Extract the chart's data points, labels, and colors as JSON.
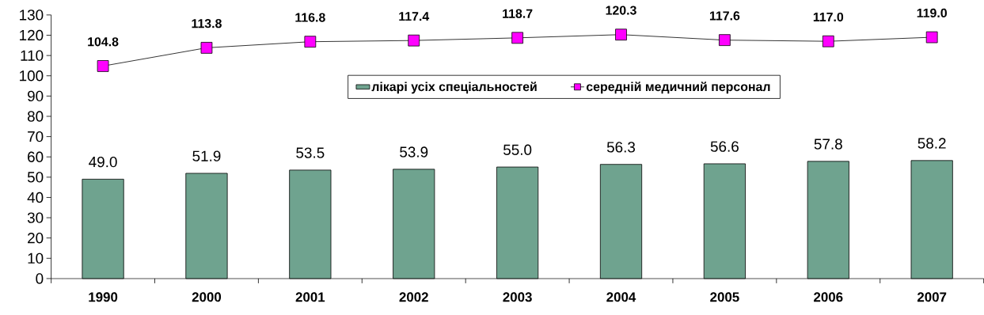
{
  "chart_data": {
    "type": "bar",
    "categories": [
      "1990",
      "2000",
      "2001",
      "2002",
      "2003",
      "2004",
      "2005",
      "2006",
      "2007"
    ],
    "series": [
      {
        "name": "лікарі усіх спеціальностей",
        "color": "#6fa38f",
        "values": [
          49.0,
          51.9,
          53.5,
          53.9,
          55.0,
          56.3,
          56.6,
          57.8,
          58.2
        ],
        "value_labels": [
          "49.0",
          "51.9",
          "53.5",
          "53.9",
          "55.0",
          "56.3",
          "56.6",
          "57.8",
          "58.2"
        ]
      },
      {
        "name": "середній медичний персонал",
        "type": "line",
        "color": "#ff00ff",
        "marker": "square",
        "values": [
          104.8,
          113.8,
          116.8,
          117.4,
          118.7,
          120.3,
          117.6,
          117.0,
          119.0
        ],
        "value_labels": [
          "104.8",
          "113.8",
          "116.8",
          "117.4",
          "118.7",
          "120.3",
          "117.6",
          "117.0",
          "119.0"
        ]
      }
    ],
    "ylim": [
      0,
      130
    ],
    "yticks": [
      0,
      10,
      20,
      30,
      40,
      50,
      60,
      70,
      80,
      90,
      100,
      110,
      120,
      130
    ],
    "legend": "top",
    "grid": false
  }
}
